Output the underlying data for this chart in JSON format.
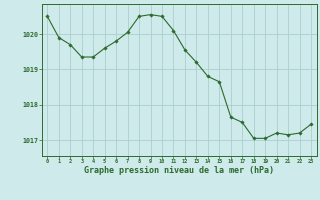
{
  "x": [
    0,
    1,
    2,
    3,
    4,
    5,
    6,
    7,
    8,
    9,
    10,
    11,
    12,
    13,
    14,
    15,
    16,
    17,
    18,
    19,
    20,
    21,
    22,
    23
  ],
  "y": [
    1020.5,
    1019.9,
    1019.7,
    1019.35,
    1019.35,
    1019.6,
    1019.8,
    1020.05,
    1020.5,
    1020.55,
    1020.5,
    1020.1,
    1019.55,
    1019.2,
    1018.8,
    1018.65,
    1017.65,
    1017.5,
    1017.05,
    1017.05,
    1017.2,
    1017.15,
    1017.2,
    1017.45
  ],
  "line_color": "#2d6a2d",
  "marker": "D",
  "marker_size": 1.8,
  "line_width": 0.8,
  "bg_color": "#ceeaea",
  "grid_color": "#aacece",
  "axis_color": "#2d6a2d",
  "tick_color": "#2d6a2d",
  "label_color": "#2d6a2d",
  "xlabel": "Graphe pression niveau de la mer (hPa)",
  "xlabel_fontsize": 6.0,
  "yticks": [
    1017,
    1018,
    1019,
    1020
  ],
  "xticks": [
    0,
    1,
    2,
    3,
    4,
    5,
    6,
    7,
    8,
    9,
    10,
    11,
    12,
    13,
    14,
    15,
    16,
    17,
    18,
    19,
    20,
    21,
    22,
    23
  ],
  "ylim": [
    1016.55,
    1020.85
  ],
  "xlim": [
    -0.5,
    23.5
  ]
}
